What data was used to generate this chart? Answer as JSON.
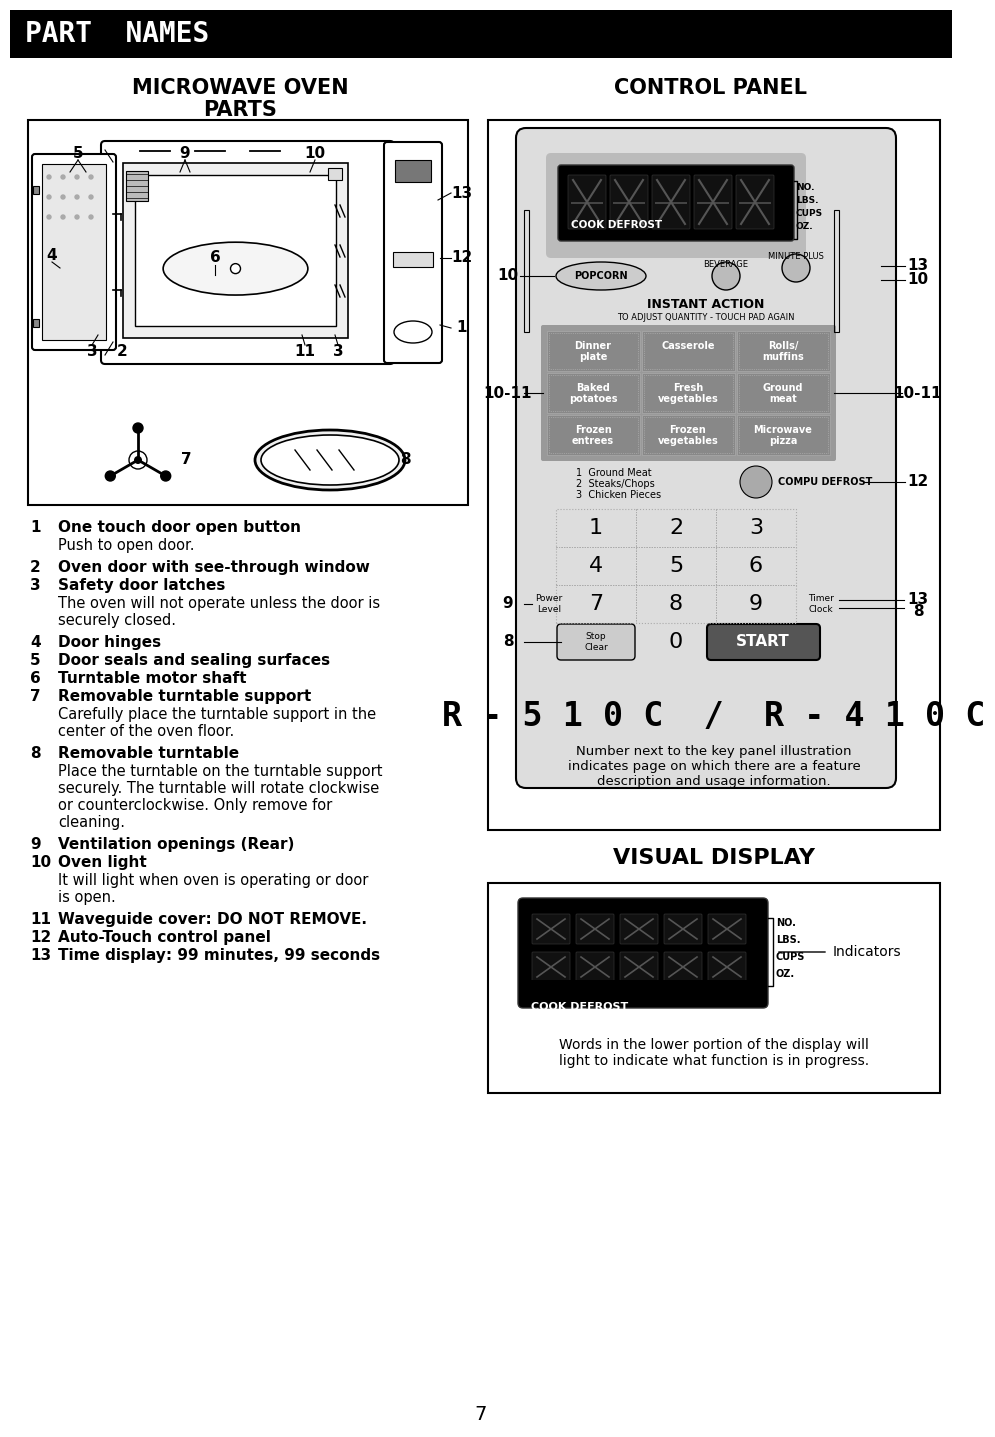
{
  "bg_color": "#ffffff",
  "header_bg": "#000000",
  "header_text": "PART  NAMES",
  "header_text_color": "#ffffff",
  "left_title1": "MICROWAVE OVEN",
  "left_title2": "PARTS",
  "right_title": "CONTROL PANEL",
  "visual_display_title": "VISUAL DISPLAY",
  "page_number": "7",
  "items": [
    {
      "num": "1",
      "bold": "One touch door open button",
      "desc": "Push to open door."
    },
    {
      "num": "2",
      "bold": "Oven door with see-through window",
      "desc": ""
    },
    {
      "num": "3",
      "bold": "Safety door latches",
      "desc": "The oven will not operate unless the door is\nsecurely closed."
    },
    {
      "num": "4",
      "bold": "Door hinges",
      "desc": ""
    },
    {
      "num": "5",
      "bold": "Door seals and sealing surfaces",
      "desc": ""
    },
    {
      "num": "6",
      "bold": "Turntable motor shaft",
      "desc": ""
    },
    {
      "num": "7",
      "bold": "Removable turntable support",
      "desc": "Carefully place the turntable support in the\ncenter of the oven floor."
    },
    {
      "num": "8",
      "bold": "Removable turntable",
      "desc": "Place the turntable on the turntable support\nsecurely. The turntable will rotate clockwise\nor counterclockwise. Only remove for\ncleaning."
    },
    {
      "num": "9",
      "bold": "Ventilation openings (Rear)",
      "desc": ""
    },
    {
      "num": "10",
      "bold": "Oven light",
      "desc": "It will light when oven is operating or door\nis open."
    },
    {
      "num": "11",
      "bold": "Waveguide cover: DO NOT REMOVE.",
      "desc": ""
    },
    {
      "num": "12",
      "bold": "Auto-Touch control panel",
      "desc": ""
    },
    {
      "num": "13",
      "bold": "Time display: 99 minutes, 99 seconds",
      "desc": ""
    }
  ],
  "btn_labels": [
    [
      "Dinner\nplate",
      "Casserole",
      "Rolls/\nmuffins"
    ],
    [
      "Baked\npotatoes",
      "Fresh\nvegetables",
      "Ground\nmeat"
    ],
    [
      "Frozen\nentrees",
      "Frozen\nvegetables",
      "Microwave\npizza"
    ]
  ],
  "control_panel_note": "Number next to the key panel illustration\nindicates page on which there are a feature\ndescription and usage information.",
  "model_text": "R - 5 1 0 C  /  R - 4 1 0 C",
  "visual_display_note": "Words in the lower portion of the display will\nlight to indicate what function is in progress.",
  "visual_display_indicators": "Indicators",
  "lcd_dark": "#111111",
  "lcd_bg": "#000000",
  "btn_grid_bg": "#888888",
  "cp_inner_bg": "#cccccc"
}
